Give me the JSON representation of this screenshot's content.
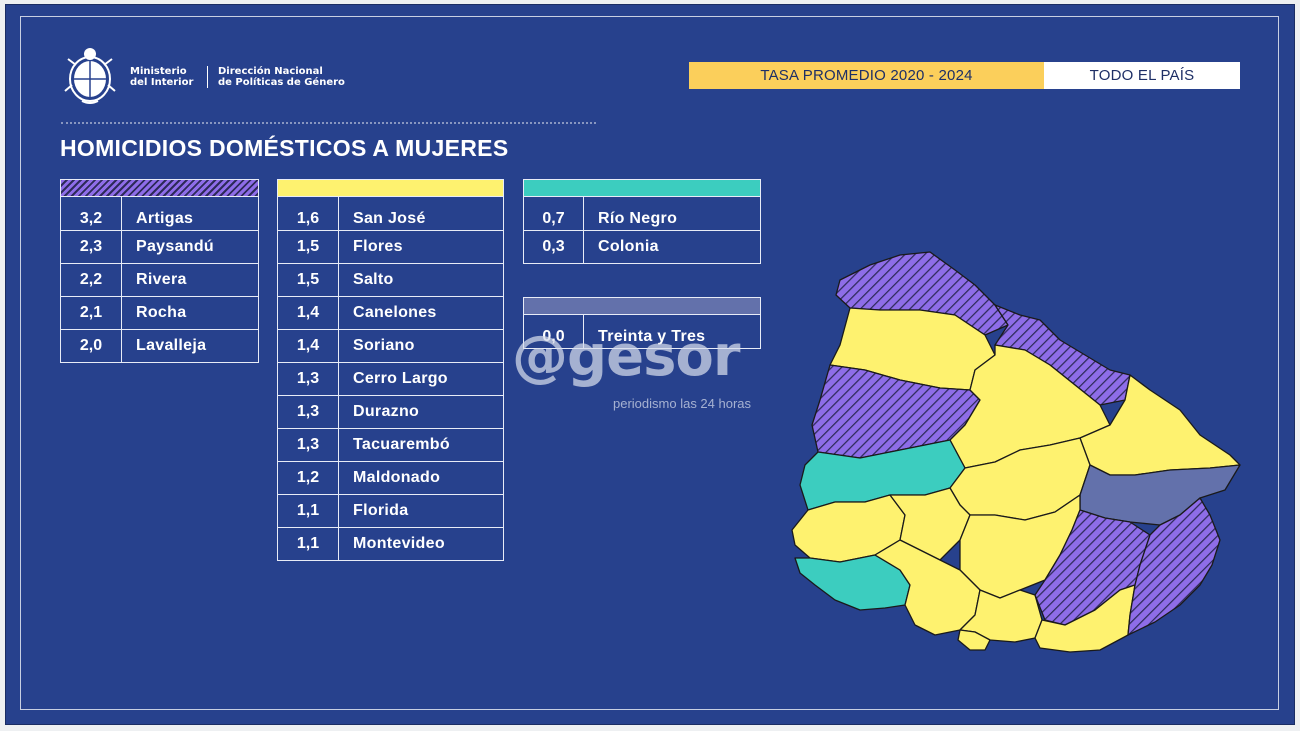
{
  "header": {
    "ministry_line1": "Ministerio",
    "ministry_line2": "del Interior",
    "agency_line1": "Dirección Nacional",
    "agency_line2": "de Políticas de Género",
    "period_badge": "TASA PROMEDIO 2020 - 2024",
    "scope_badge": "TODO EL PAÍS"
  },
  "title": "HOMICIDIOS DOMÉSTICOS A MUJERES",
  "colors": {
    "background": "#27418d",
    "high_hatch": "#8e6de8",
    "medium": "#fef26f",
    "low": "#3ccdbf",
    "zero": "#6371ab",
    "badge": "#fbcf5b"
  },
  "tables": {
    "high": [
      {
        "rate": "3,2",
        "dept": "Artigas"
      },
      {
        "rate": "2,3",
        "dept": "Paysandú"
      },
      {
        "rate": "2,2",
        "dept": "Rivera"
      },
      {
        "rate": "2,1",
        "dept": "Rocha"
      },
      {
        "rate": "2,0",
        "dept": "Lavalleja"
      }
    ],
    "medium": [
      {
        "rate": "1,6",
        "dept": "San José"
      },
      {
        "rate": "1,5",
        "dept": "Flores"
      },
      {
        "rate": "1,5",
        "dept": "Salto"
      },
      {
        "rate": "1,4",
        "dept": "Canelones"
      },
      {
        "rate": "1,4",
        "dept": "Soriano"
      },
      {
        "rate": "1,3",
        "dept": "Cerro Largo"
      },
      {
        "rate": "1,3",
        "dept": "Durazno"
      },
      {
        "rate": "1,3",
        "dept": "Tacuarembó"
      },
      {
        "rate": "1,2",
        "dept": "Maldonado"
      },
      {
        "rate": "1,1",
        "dept": "Florida"
      },
      {
        "rate": "1,1",
        "dept": "Montevideo"
      }
    ],
    "low": [
      {
        "rate": "0,7",
        "dept": "Río Negro"
      },
      {
        "rate": "0,3",
        "dept": "Colonia"
      }
    ],
    "zero": [
      {
        "rate": "0,0",
        "dept": "Treinta y Tres"
      }
    ]
  },
  "watermark": {
    "main": "@gesor",
    "sub": "periodismo las 24 horas"
  },
  "map": {
    "regions": [
      {
        "name": "Artigas",
        "category": "high"
      },
      {
        "name": "Salto",
        "category": "medium"
      },
      {
        "name": "Rivera",
        "category": "high"
      },
      {
        "name": "Paysandú",
        "category": "high"
      },
      {
        "name": "Tacuarembó",
        "category": "medium"
      },
      {
        "name": "Cerro Largo",
        "category": "medium"
      },
      {
        "name": "Río Negro",
        "category": "low"
      },
      {
        "name": "Durazno",
        "category": "medium"
      },
      {
        "name": "Treinta y Tres",
        "category": "zero"
      },
      {
        "name": "Soriano",
        "category": "medium"
      },
      {
        "name": "Flores",
        "category": "medium"
      },
      {
        "name": "Florida",
        "category": "medium"
      },
      {
        "name": "Colonia",
        "category": "low"
      },
      {
        "name": "San José",
        "category": "medium"
      },
      {
        "name": "Canelones",
        "category": "medium"
      },
      {
        "name": "Montevideo",
        "category": "medium"
      },
      {
        "name": "Lavalleja",
        "category": "high"
      },
      {
        "name": "Maldonado",
        "category": "medium"
      },
      {
        "name": "Rocha",
        "category": "high"
      }
    ]
  }
}
